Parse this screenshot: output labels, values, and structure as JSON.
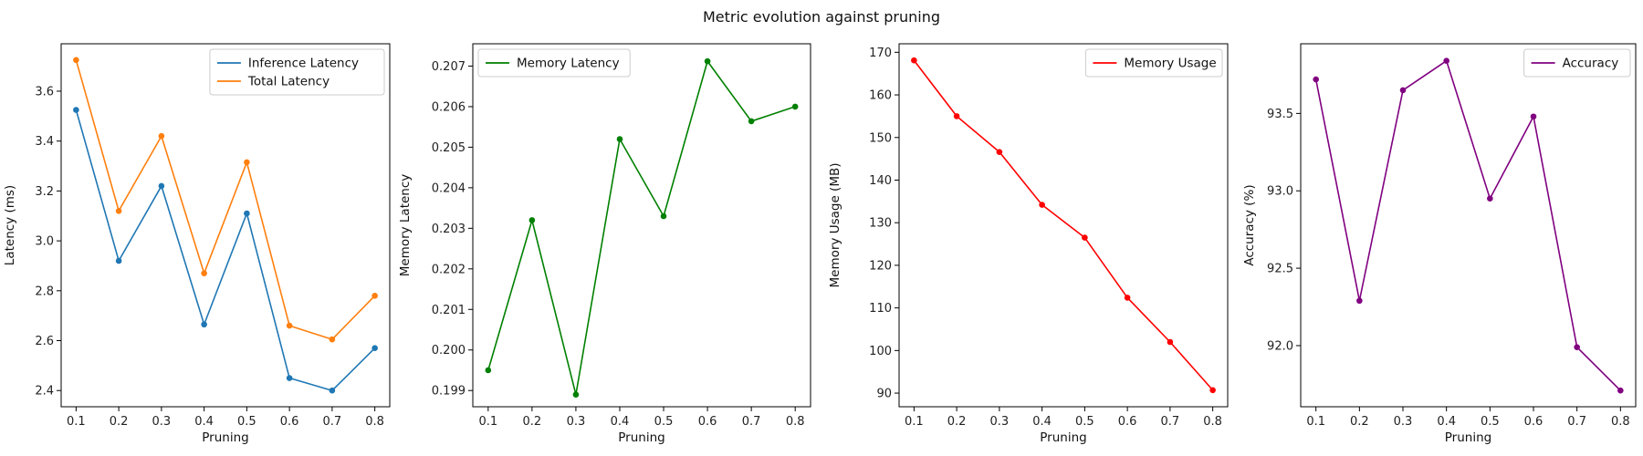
{
  "figure": {
    "suptitle": "Metric evolution against pruning"
  },
  "chart_data": [
    {
      "type": "line",
      "xlabel": "Pruning",
      "ylabel": "Latency (ms)",
      "x": [
        0.1,
        0.2,
        0.3,
        0.4,
        0.5,
        0.6,
        0.7,
        0.8
      ],
      "xlim": [
        0.065,
        0.835
      ],
      "xticks": [
        "0.1",
        "0.2",
        "0.3",
        "0.4",
        "0.5",
        "0.6",
        "0.7",
        "0.8"
      ],
      "ylim": [
        2.335,
        3.79
      ],
      "yticks": [
        "2.4",
        "2.6",
        "2.8",
        "3.0",
        "3.2",
        "3.4",
        "3.6"
      ],
      "legend": "top-right",
      "series": [
        {
          "name": "Inference Latency",
          "color": "#1f77b4",
          "values": [
            3.525,
            2.92,
            3.22,
            2.665,
            3.11,
            2.45,
            2.4,
            2.57
          ]
        },
        {
          "name": "Total Latency",
          "color": "#ff7f0e",
          "values": [
            3.725,
            3.12,
            3.42,
            2.87,
            3.315,
            2.66,
            2.605,
            2.78
          ]
        }
      ]
    },
    {
      "type": "line",
      "xlabel": "Pruning",
      "ylabel": "Memory Latency",
      "x": [
        0.1,
        0.2,
        0.3,
        0.4,
        0.5,
        0.6,
        0.7,
        0.8
      ],
      "xlim": [
        0.065,
        0.835
      ],
      "xticks": [
        "0.1",
        "0.2",
        "0.3",
        "0.4",
        "0.5",
        "0.6",
        "0.7",
        "0.8"
      ],
      "ylim": [
        0.1986,
        0.20755
      ],
      "yticks": [
        "0.199",
        "0.200",
        "0.201",
        "0.202",
        "0.203",
        "0.204",
        "0.205",
        "0.206",
        "0.207"
      ],
      "legend": "top-left",
      "series": [
        {
          "name": "Memory Latency",
          "color": "#008000",
          "values": [
            0.1995,
            0.2032,
            0.1989,
            0.2052,
            0.2033,
            0.20712,
            0.20564,
            0.206
          ]
        }
      ]
    },
    {
      "type": "line",
      "xlabel": "Pruning",
      "ylabel": "Memory Usage (MB)",
      "x": [
        0.1,
        0.2,
        0.3,
        0.4,
        0.5,
        0.6,
        0.7,
        0.8
      ],
      "xlim": [
        0.065,
        0.835
      ],
      "xticks": [
        "0.1",
        "0.2",
        "0.3",
        "0.4",
        "0.5",
        "0.6",
        "0.7",
        "0.8"
      ],
      "ylim": [
        86.8,
        172
      ],
      "yticks": [
        "90",
        "100",
        "110",
        "120",
        "130",
        "140",
        "150",
        "160",
        "170"
      ],
      "legend": "top-right",
      "series": [
        {
          "name": "Memory Usage",
          "color": "#ff0000",
          "values": [
            168.1,
            155.0,
            146.6,
            134.2,
            126.5,
            112.4,
            102.0,
            90.7
          ]
        }
      ]
    },
    {
      "type": "line",
      "xlabel": "Pruning",
      "ylabel": "Accuracy (%)",
      "x": [
        0.1,
        0.2,
        0.3,
        0.4,
        0.5,
        0.6,
        0.7,
        0.8
      ],
      "xlim": [
        0.065,
        0.835
      ],
      "xticks": [
        "0.1",
        "0.2",
        "0.3",
        "0.4",
        "0.5",
        "0.6",
        "0.7",
        "0.8"
      ],
      "ylim": [
        91.605,
        93.95
      ],
      "yticks": [
        "92.0",
        "92.5",
        "93.0",
        "93.5"
      ],
      "legend": "top-right",
      "series": [
        {
          "name": "Accuracy",
          "color": "#800080",
          "values": [
            93.72,
            92.29,
            93.65,
            93.84,
            92.95,
            93.48,
            91.99,
            91.71
          ]
        }
      ]
    }
  ]
}
